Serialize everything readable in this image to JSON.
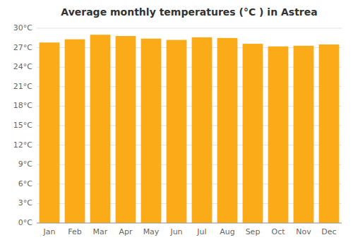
{
  "chart_data": {
    "type": "bar",
    "title": "Average monthly temperatures (°C ) in Astrea",
    "categories": [
      "Jan",
      "Feb",
      "Mar",
      "Apr",
      "May",
      "Jun",
      "Jul",
      "Aug",
      "Sep",
      "Oct",
      "Nov",
      "Dec"
    ],
    "values": [
      27.8,
      28.3,
      29.0,
      28.8,
      28.4,
      28.2,
      28.6,
      28.5,
      27.6,
      27.2,
      27.3,
      27.5
    ],
    "color": "#FBAB18",
    "ylim": [
      0,
      30
    ],
    "yticks": [
      {
        "value": 0,
        "label": "0°C"
      },
      {
        "value": 3,
        "label": "3°C"
      },
      {
        "value": 6,
        "label": "6°C"
      },
      {
        "value": 9,
        "label": "9°C"
      },
      {
        "value": 12,
        "label": "12°C"
      },
      {
        "value": 15,
        "label": "15°C"
      },
      {
        "value": 18,
        "label": "18°C"
      },
      {
        "value": 21,
        "label": "21°C"
      },
      {
        "value": 24,
        "label": "24°C"
      },
      {
        "value": 27,
        "label": "27°C"
      },
      {
        "value": 30,
        "label": "30°C"
      }
    ],
    "grid": true
  }
}
